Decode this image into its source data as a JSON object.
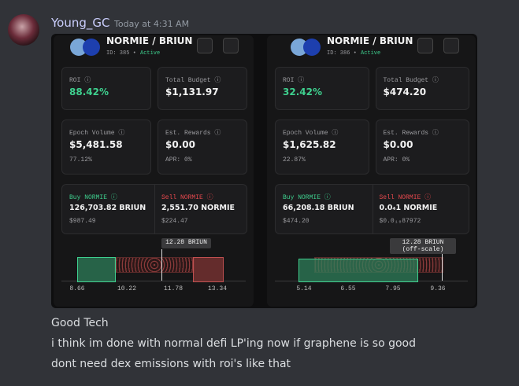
{
  "message": {
    "author": "Young_GC",
    "timestamp": "Today at 4:31 AM",
    "lines": [
      "Good Tech",
      "i think im done with normal defi LP'ing now if graphene is so good",
      "dont need dex emissions with roi's like that"
    ]
  },
  "cards": [
    {
      "pair": "NORMIE / BRIUN",
      "id": "ID: 385 •",
      "status": "Active",
      "roi_label": "ROI ⓘ",
      "roi": "88.42%",
      "budget_label": "Total Budget ⓘ",
      "budget": "$1,131.97",
      "epoch_label": "Epoch Volume ⓘ",
      "epoch_volume": "$5,481.58",
      "epoch_pct": "77.12%",
      "rewards_label": "Est. Rewards ⓘ",
      "rewards": "$0.00",
      "apr": "APR: 0%",
      "buy_label": "Buy NORMIE ⓘ",
      "buy_amount": "126,703.82 BRIUN",
      "buy_usd": "$987.49",
      "sell_label": "Sell NORMIE ⓘ",
      "sell_amount": "2,551.70 NORMIE",
      "sell_usd": "$224.47",
      "marker_label": "12.28 BRIUN",
      "ticks": [
        "8.66",
        "10.22",
        "11.78",
        "13.34"
      ]
    },
    {
      "pair": "NORMIE / BRIUN",
      "id": "ID: 386 •",
      "status": "Active",
      "roi_label": "ROI ⓘ",
      "roi": "32.42%",
      "budget_label": "Total Budget ⓘ",
      "budget": "$474.20",
      "epoch_label": "Epoch Volume ⓘ",
      "epoch_volume": "$1,625.82",
      "epoch_pct": "22.87%",
      "rewards_label": "Est. Rewards ⓘ",
      "rewards": "$0.00",
      "apr": "APR: 0%",
      "buy_label": "Buy NORMIE ⓘ",
      "buy_amount": "66,208.18 BRIUN",
      "buy_usd": "$474.20",
      "sell_label": "Sell NORMIE ⓘ",
      "sell_amount": "0.0₄1 NORMIE",
      "sell_usd": "$0.0₁₀87972",
      "marker_label": "12.28 BRIUN",
      "marker_note": "(off-scale)",
      "ticks": [
        "5.14",
        "6.55",
        "7.95",
        "9.36"
      ]
    }
  ]
}
